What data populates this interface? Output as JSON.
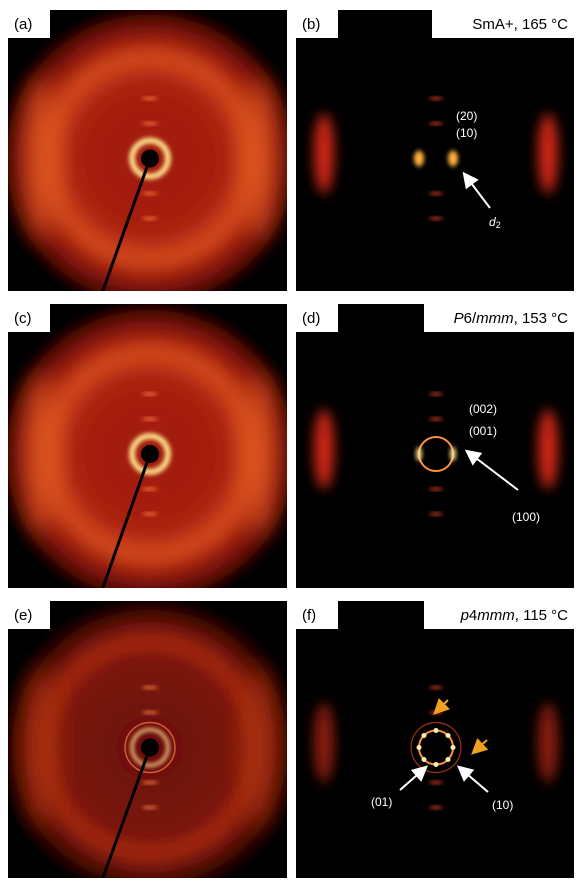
{
  "panels": [
    {
      "label": "(a)"
    },
    {
      "label": "(b)",
      "condition": [
        "SmA+, 165 °C"
      ],
      "annotations": [
        "(20)",
        "(10)"
      ],
      "d_label": {
        "text": "d",
        "subscript": "2"
      }
    },
    {
      "label": "(c)"
    },
    {
      "label": "(d)",
      "condition": [
        "P",
        "6/",
        "mmm",
        ", 153 °C"
      ],
      "annotations": [
        "(002)",
        "(001)",
        "(100)"
      ]
    },
    {
      "label": "(e)"
    },
    {
      "label": "(f)",
      "condition": [
        "p",
        "4",
        "mmm",
        ", 115 °C"
      ],
      "annotations": [
        "(01)",
        "(10)"
      ]
    }
  ]
}
